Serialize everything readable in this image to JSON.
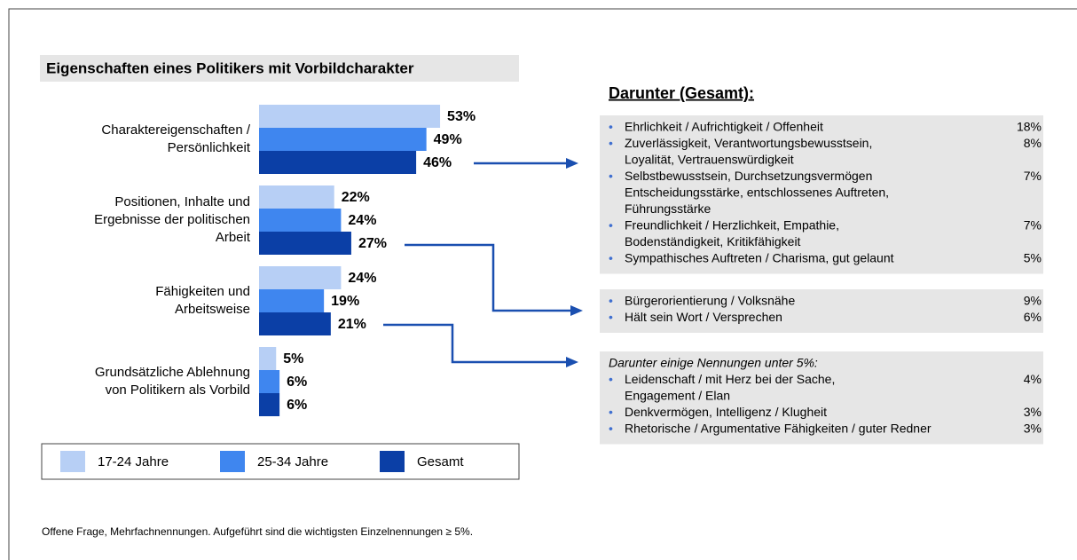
{
  "chart_data": {
    "type": "bar",
    "orientation": "horizontal",
    "title": "Eigenschaften eines Politikers mit Vorbildcharakter",
    "categories": [
      [
        "Charaktereigenschaften /",
        "Persönlichkeit"
      ],
      [
        "Positionen, Inhalte  und",
        "Ergebnisse der politischen",
        "Arbeit"
      ],
      [
        "Fähigkeiten und",
        "Arbeitsweise"
      ],
      [
        "Grundsätzliche  Ablehnung",
        "von Politikern als Vorbild"
      ]
    ],
    "series": [
      {
        "name": "17-24 Jahre",
        "color": "#b7cff5",
        "values": [
          53,
          22,
          24,
          5
        ],
        "value_labels": [
          "53%",
          "22%",
          "24%",
          "5%"
        ]
      },
      {
        "name": "25-34 Jahre",
        "color": "#3f86ef",
        "values": [
          49,
          24,
          19,
          6
        ],
        "value_labels": [
          "49%",
          "24%",
          "19%",
          "6%"
        ]
      },
      {
        "name": "Gesamt",
        "color": "#0b3fa6",
        "values": [
          46,
          27,
          21,
          6
        ],
        "value_labels": [
          "46%",
          "27%",
          "21%",
          "6%"
        ]
      }
    ],
    "legend": "bottom"
  },
  "panel_title": "Darunter (Gesamt):",
  "panels": [
    {
      "items": [
        {
          "lines": [
            "Ehrlichkeit / Aufrichtigkeit / Offenheit"
          ],
          "share": "18%"
        },
        {
          "lines": [
            "Zuverlässigkeit, Verantwortungsbewusstsein,",
            "Loyalität,  Vertrauenswürdigkeit"
          ],
          "share": "8%"
        },
        {
          "lines": [
            "Selbstbewusstsein, Durchsetzungsvermögen",
            "Entscheidungsstärke, entschlossenes Auftreten,",
            "Führungsstärke"
          ],
          "share": "7%"
        },
        {
          "lines": [
            "Freundlichkeit / Herzlichkeit, Empathie,",
            "Bodenständigkeit,  Kritikfähigkeit"
          ],
          "share": "7%"
        },
        {
          "lines": [
            "Sympathisches Auftreten / Charisma, gut gelaunt"
          ],
          "share": "5%"
        }
      ]
    },
    {
      "items": [
        {
          "lines": [
            "Bürgerorientierung / Volksnähe"
          ],
          "share": "9%"
        },
        {
          "lines": [
            "Hält sein Wort / Versprechen"
          ],
          "share": "6%"
        }
      ]
    },
    {
      "heading": "Darunter einige Nennungen unter 5%:",
      "items": [
        {
          "lines": [
            "Leidenschaft / mit Herz bei der Sache,",
            "Engagement / Elan"
          ],
          "share": "4%"
        },
        {
          "lines": [
            "Denkvermögen, Intelligenz / Klugheit"
          ],
          "share": "3%"
        },
        {
          "lines": [
            "Rhetorische / Argumentative Fähigkeiten / guter Redner"
          ],
          "share": "3%"
        }
      ]
    }
  ],
  "footnote": "Offene Frage, Mehrfachnennungen. Aufgeführt sind die wichtigsten Einzelnennungen ≥ 5%."
}
